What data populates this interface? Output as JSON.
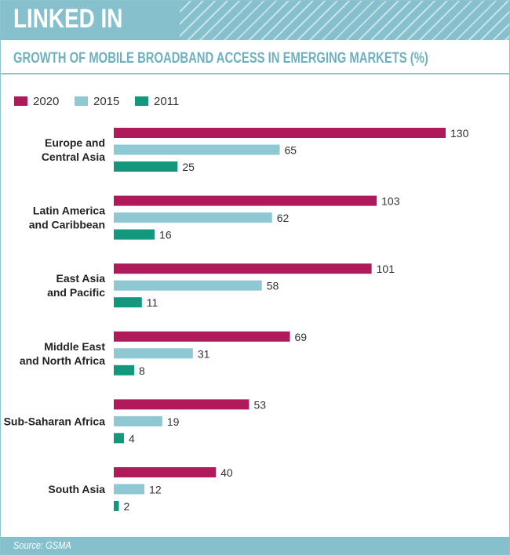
{
  "header": {
    "banner_title": "LINKED IN",
    "subtitle": "GROWTH OF MOBILE BROADBAND ACCESS IN EMERGING MARKETS (%)"
  },
  "footer": {
    "source": "Source: GSMA"
  },
  "colors": {
    "banner": "#86c0cc",
    "series_2020": "#b0195a",
    "series_2015": "#8ec8d3",
    "series_2011": "#13987e"
  },
  "chart_data": {
    "type": "bar",
    "orientation": "horizontal",
    "title": "GROWTH OF MOBILE BROADBAND ACCESS IN EMERGING MARKETS (%)",
    "legend_position": "top-left",
    "grid": false,
    "xlim": [
      0,
      130
    ],
    "categories": [
      [
        "Europe and",
        "Central Asia"
      ],
      [
        "Latin America",
        "and Caribbean"
      ],
      [
        "East Asia",
        "and Pacific"
      ],
      [
        "Middle East",
        "and North Africa"
      ],
      [
        "Sub-Saharan Africa"
      ],
      [
        "South Asia"
      ]
    ],
    "series": [
      {
        "name": "2020",
        "color": "#b0195a",
        "values": [
          130,
          103,
          101,
          69,
          53,
          40
        ]
      },
      {
        "name": "2015",
        "color": "#8ec8d3",
        "values": [
          65,
          62,
          58,
          31,
          19,
          12
        ]
      },
      {
        "name": "2011",
        "color": "#13987e",
        "values": [
          25,
          16,
          11,
          8,
          4,
          2
        ]
      }
    ]
  }
}
